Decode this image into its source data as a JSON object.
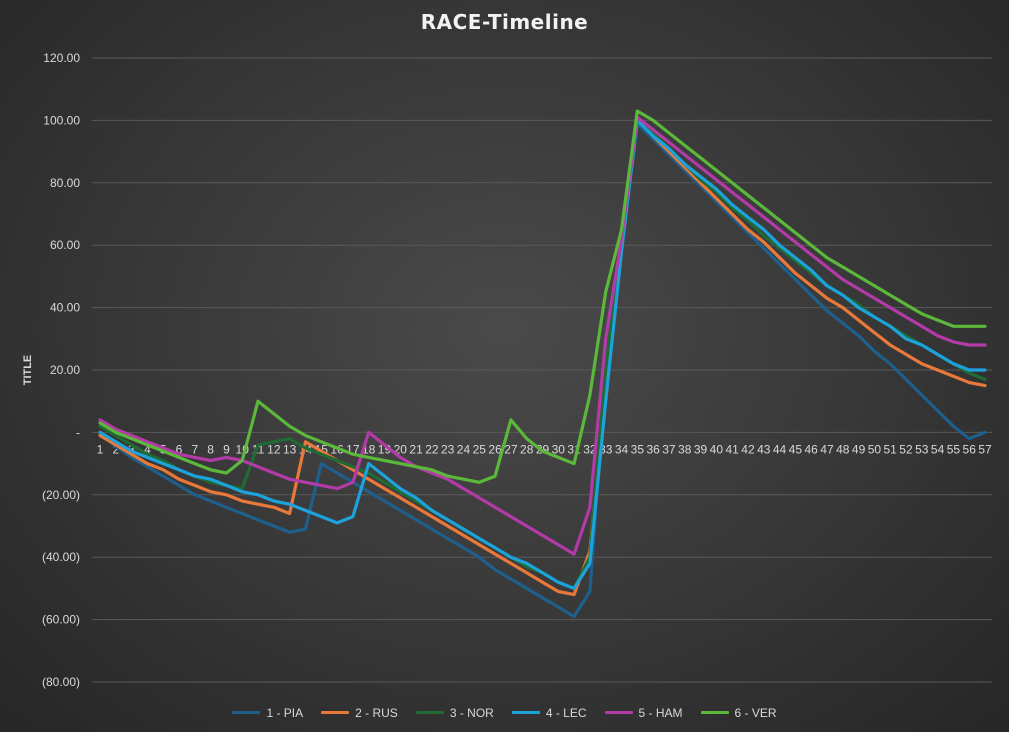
{
  "chart_data": {
    "type": "line",
    "title": "RACE-Timeline",
    "xlabel": "",
    "ylabel": "TITLE",
    "ylim": [
      -80,
      120
    ],
    "yticks": [
      {
        "value": 120,
        "label": "120.00"
      },
      {
        "value": 100,
        "label": "100.00"
      },
      {
        "value": 80,
        "label": "80.00"
      },
      {
        "value": 60,
        "label": "60.00"
      },
      {
        "value": 40,
        "label": "40.00"
      },
      {
        "value": 20,
        "label": "20.00"
      },
      {
        "value": 0,
        "label": "-"
      },
      {
        "value": -20,
        "label": "(20.00)"
      },
      {
        "value": -40,
        "label": "(40.00)"
      },
      {
        "value": -60,
        "label": "(60.00)"
      },
      {
        "value": -80,
        "label": "(80.00)"
      }
    ],
    "categories": [
      "1",
      "2",
      "3",
      "4",
      "5",
      "6",
      "7",
      "8",
      "9",
      "10",
      "11",
      "12",
      "13",
      "14",
      "15",
      "16",
      "17",
      "18",
      "19",
      "20",
      "21",
      "22",
      "23",
      "24",
      "25",
      "26",
      "27",
      "28",
      "29",
      "30",
      "31",
      "32",
      "33",
      "34",
      "35",
      "36",
      "37",
      "38",
      "39",
      "40",
      "41",
      "42",
      "43",
      "44",
      "45",
      "46",
      "47",
      "48",
      "49",
      "50",
      "51",
      "52",
      "53",
      "54",
      "55",
      "56",
      "57"
    ],
    "grid": true,
    "legend_position": "bottom",
    "series": [
      {
        "name": "1 - PIA",
        "color": "#1e5f8c",
        "values": [
          0,
          -4.5,
          -8,
          -11,
          -14,
          -17,
          -20,
          -22,
          -24,
          -26,
          -28,
          -30,
          -32,
          -31,
          -10,
          -13,
          -16,
          -19,
          -22,
          -25,
          -28,
          -31,
          -34,
          -37,
          -40,
          -44,
          -47,
          -50,
          -53,
          -56,
          -59,
          -51,
          20,
          60,
          99,
          94,
          89,
          84,
          79,
          74,
          69,
          64,
          59,
          54,
          49,
          44,
          39,
          35,
          31,
          26,
          22,
          17,
          12,
          7,
          2,
          -2,
          0
        ]
      },
      {
        "name": "2 - RUS",
        "color": "#e8793a",
        "values": [
          -1,
          -4,
          -7,
          -10,
          -12,
          -15,
          -17,
          -19,
          -20,
          -22,
          -23,
          -24,
          -26,
          -3,
          -6,
          -9,
          -12,
          -15,
          -18,
          -21,
          -24,
          -27,
          -30,
          -33,
          -36,
          -39,
          -42,
          -45,
          -48,
          -51,
          -52,
          -38,
          15,
          60,
          101,
          95,
          90,
          85,
          80,
          75,
          70,
          65,
          61,
          56,
          51,
          47,
          43,
          40,
          36,
          32,
          28,
          25,
          22,
          20,
          18,
          16,
          15
        ]
      },
      {
        "name": "3 - NOR",
        "color": "#1f6b33",
        "values": [
          2,
          -1,
          -4,
          -7,
          -9,
          -12,
          -14,
          -16,
          -17,
          -18,
          -4,
          -3,
          -2,
          -5,
          -7,
          -9,
          -11,
          -13,
          -16,
          -19,
          -22,
          -25,
          -28,
          -31,
          -34,
          -37,
          -40,
          -43,
          -45,
          -48,
          -50,
          -40,
          20,
          62,
          101,
          96,
          91,
          86,
          81,
          77,
          72,
          68,
          63,
          59,
          55,
          51,
          47,
          44,
          41,
          37,
          34,
          31,
          28,
          25,
          22,
          19,
          17
        ]
      },
      {
        "name": "4 - LEC",
        "color": "#1ca3dc",
        "values": [
          0,
          -3,
          -6,
          -8,
          -10,
          -12,
          -14,
          -15,
          -17,
          -19,
          -20,
          -22,
          -23,
          -25,
          -27,
          -29,
          -27,
          -10,
          -14,
          -18,
          -21,
          -25,
          -28,
          -31,
          -34,
          -37,
          -40,
          -42,
          -45,
          -48,
          -50,
          -42,
          10,
          58,
          100,
          95,
          91,
          86,
          82,
          78,
          73,
          69,
          65,
          60,
          56,
          52,
          47,
          44,
          40,
          37,
          34,
          30,
          28,
          25,
          22,
          20,
          20
        ]
      },
      {
        "name": "5 - HAM",
        "color": "#b23ba8",
        "values": [
          4,
          1,
          -1,
          -3,
          -5,
          -7,
          -8,
          -9,
          -8,
          -9,
          -11,
          -13,
          -15,
          -16,
          -17,
          -18,
          -16,
          0,
          -4,
          -8,
          -11,
          -13,
          -15,
          -18,
          -21,
          -24,
          -27,
          -30,
          -33,
          -36,
          -39,
          -24,
          30,
          62,
          101,
          97,
          93,
          89,
          85,
          81,
          77,
          73,
          69,
          65,
          61,
          57,
          53,
          49,
          46,
          43,
          40,
          37,
          34,
          31,
          29,
          28,
          28
        ]
      },
      {
        "name": "6 - VER",
        "color": "#5bb83a",
        "values": [
          3,
          0,
          -2,
          -4,
          -6,
          -8,
          -10,
          -12,
          -13,
          -9,
          10,
          6,
          2,
          -1,
          -3,
          -5,
          -7,
          -8,
          -9,
          -10,
          -11,
          -12,
          -14,
          -15,
          -16,
          -14,
          4,
          -2,
          -6,
          -8,
          -10,
          12,
          45,
          65,
          103,
          100,
          96,
          92,
          88,
          84,
          80,
          76,
          72,
          68,
          64,
          60,
          56,
          53,
          50,
          47,
          44,
          41,
          38,
          36,
          34,
          34,
          34
        ]
      }
    ]
  }
}
